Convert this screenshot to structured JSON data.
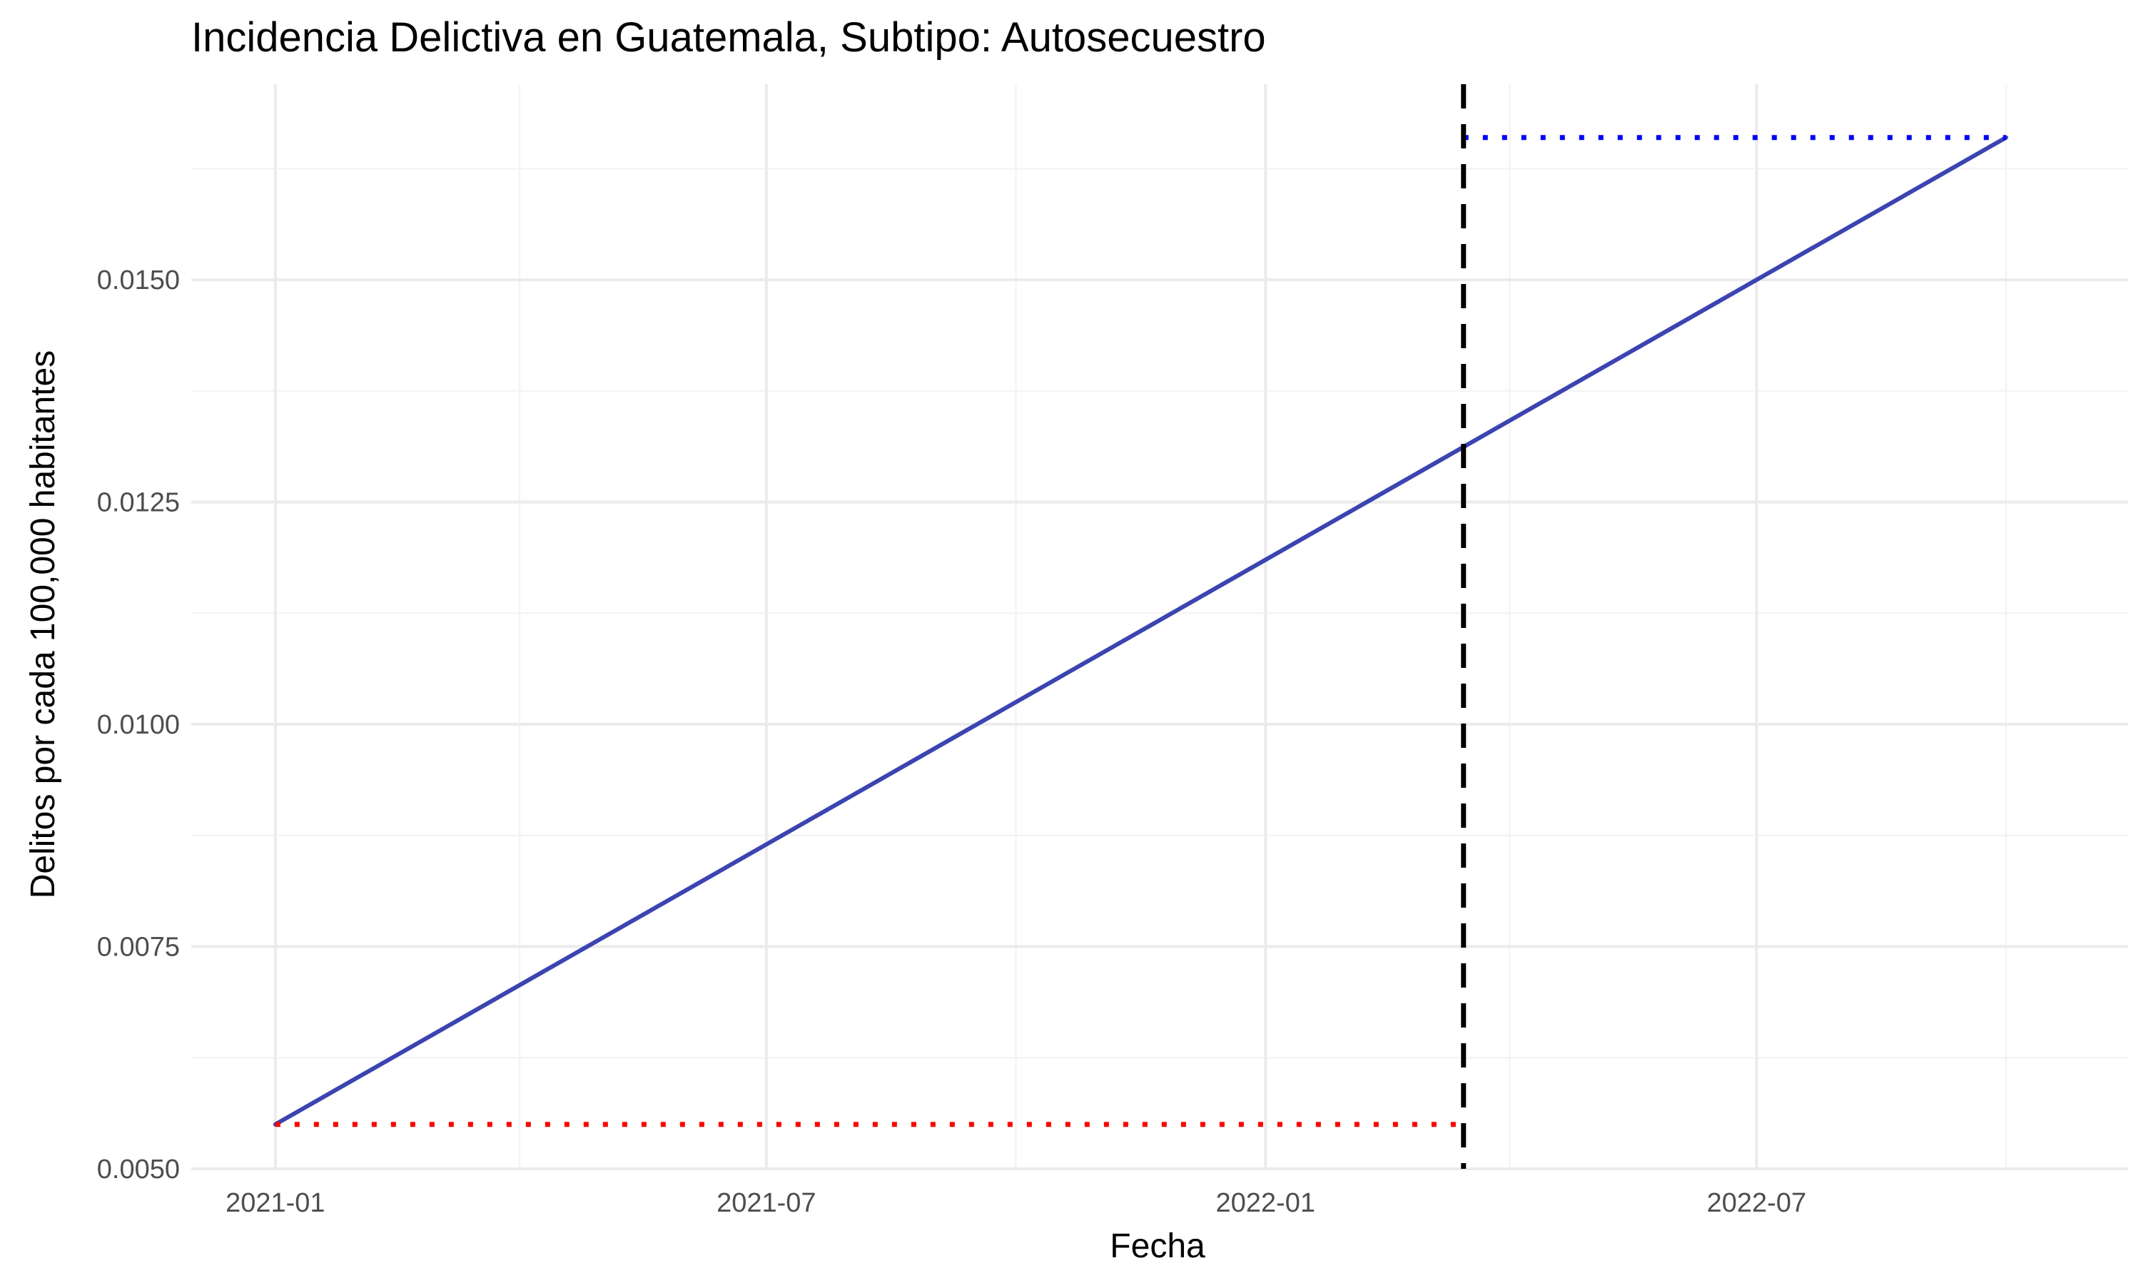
{
  "chart_data": {
    "type": "line",
    "title": "Incidencia Delictiva en Guatemala, Subtipo: Autosecuestro",
    "xlabel": "Fecha",
    "ylabel": "Delitos por cada 100,000 habitantes",
    "x_tick_labels": [
      "2021-01",
      "2021-07",
      "2022-01",
      "2022-07"
    ],
    "x_ticks": [
      "2021-01-01",
      "2021-07-01",
      "2022-01-01",
      "2022-07-01"
    ],
    "x_minor_ticks": [
      "2021-04-01",
      "2021-10-01",
      "2022-04-01",
      "2022-10-01"
    ],
    "y_tick_labels": [
      "0.0050",
      "0.0075",
      "0.0100",
      "0.0125",
      "0.0150"
    ],
    "y_ticks": [
      0.005,
      0.0075,
      0.01,
      0.0125,
      0.015
    ],
    "xlim": [
      "2020-12-01",
      "2022-11-15"
    ],
    "ylim": [
      0.005,
      0.0172
    ],
    "grid": true,
    "series": [
      {
        "type": "line",
        "style": "solid",
        "color": "#3b44b0",
        "x": [
          "2021-01-01",
          "2022-10-01"
        ],
        "y": [
          0.0055,
          0.0166
        ]
      },
      {
        "type": "line",
        "style": "dotted",
        "color": "#ff0000",
        "x": [
          "2021-01-01",
          "2022-03-15"
        ],
        "y": [
          0.0055,
          0.0055
        ]
      },
      {
        "type": "line",
        "style": "dotted",
        "color": "#0000ff",
        "x": [
          "2022-03-15",
          "2022-10-01"
        ],
        "y": [
          0.0166,
          0.0166
        ]
      }
    ],
    "vline": {
      "x": "2022-03-15",
      "style": "dashed",
      "color": "#000000"
    },
    "colors": {
      "grid_major": "#ebebeb",
      "grid_minor": "#f4f4f4",
      "tick_text": "#4d4d4d"
    }
  }
}
